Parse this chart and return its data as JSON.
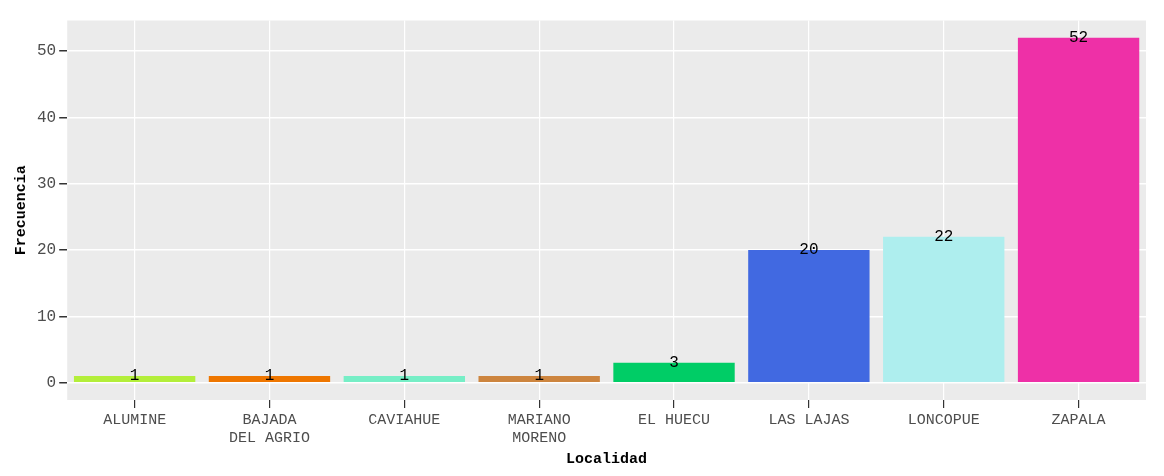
{
  "chart_data": {
    "type": "bar",
    "xlabel": "Localidad",
    "ylabel": "Frecuencia",
    "categories": [
      "ALUMINE",
      "BAJADA\nDEL AGRIO",
      "CAVIAHUE",
      "MARIANO\nMORENO",
      "EL HUECU",
      "LAS LAJAS",
      "LONCOPUE",
      "ZAPALA"
    ],
    "values": [
      1,
      1,
      1,
      1,
      3,
      20,
      22,
      52
    ],
    "colors": [
      "#b3ee3a",
      "#ee7600",
      "#76eec6",
      "#cd853f",
      "#00cd66",
      "#4169e1",
      "#aeeeee",
      "#ee30a7"
    ],
    "ylim": [
      -2.6,
      54.6
    ],
    "yticks": [
      0,
      10,
      20,
      30,
      40,
      50
    ],
    "grid": true,
    "data_labels": true,
    "legend": false
  }
}
